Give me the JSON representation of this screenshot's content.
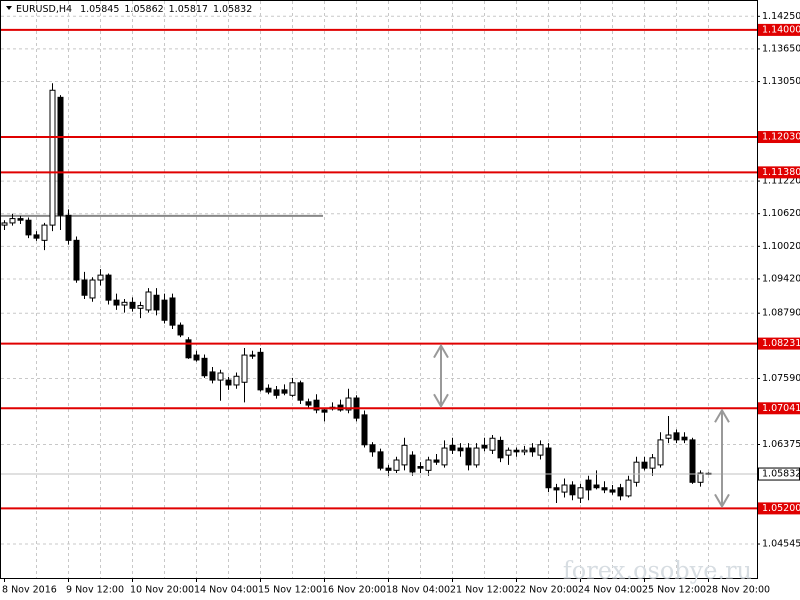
{
  "chart_data": {
    "type": "candlestick",
    "symbol": "EURUSD,H4",
    "watermark": "forex.osobye.ru",
    "categories": [
      "8 Nov 2016",
      null,
      null,
      null,
      null,
      null,
      null,
      null,
      "9 Nov 12:00",
      null,
      null,
      null,
      null,
      null,
      null,
      null,
      "10 Nov 20:00",
      null,
      null,
      null,
      null,
      null,
      null,
      null,
      "14 Nov 04:00",
      null,
      null,
      null,
      null,
      null,
      null,
      null,
      "15 Nov 12:00",
      null,
      null,
      null,
      null,
      null,
      null,
      null,
      "16 Nov 20:00",
      null,
      null,
      null,
      null,
      null,
      null,
      null,
      "18 Nov 04:00",
      null,
      null,
      null,
      null,
      null,
      null,
      null,
      "21 Nov 12:00",
      null,
      null,
      null,
      null,
      null,
      null,
      null,
      "22 Nov 20:00",
      null,
      null,
      null,
      null,
      null,
      null,
      null,
      "24 Nov 04:00",
      null,
      null,
      null,
      null,
      null,
      null,
      null,
      "25 Nov 12:00",
      null,
      null,
      null,
      null,
      null,
      null,
      null,
      "28 Nov 20:00"
    ],
    "ohlc": [
      [
        1.1041,
        1.105,
        1.1032,
        1.1045
      ],
      [
        1.1045,
        1.1062,
        1.104,
        1.1053
      ],
      [
        1.1053,
        1.1058,
        1.1043,
        1.105
      ],
      [
        1.105,
        1.1055,
        1.1017,
        1.1023
      ],
      [
        1.1023,
        1.103,
        1.1012,
        1.1017
      ],
      [
        1.1013,
        1.1045,
        1.0995,
        1.1041
      ],
      [
        1.1041,
        1.1302,
        1.103,
        1.1289
      ],
      [
        1.1276,
        1.128,
        1.1032,
        1.1059
      ],
      [
        1.1059,
        1.107,
        1.1005,
        1.1013
      ],
      [
        1.1013,
        1.102,
        1.0935,
        1.094
      ],
      [
        1.094,
        1.0955,
        1.0905,
        1.0912
      ],
      [
        1.0907,
        1.0945,
        1.09,
        1.094
      ],
      [
        1.094,
        1.096,
        1.093,
        1.0949
      ],
      [
        1.0949,
        1.0952,
        1.0895,
        1.0903
      ],
      [
        1.0903,
        1.0915,
        1.0885,
        1.0894
      ],
      [
        1.0894,
        1.0905,
        1.088,
        1.0899
      ],
      [
        1.0899,
        1.0908,
        1.0882,
        1.0888
      ],
      [
        1.0888,
        1.09,
        1.087,
        1.0893
      ],
      [
        1.0885,
        1.0925,
        1.088,
        1.0918
      ],
      [
        1.0912,
        1.0925,
        1.0875,
        1.0885
      ],
      [
        1.0903,
        1.0915,
        1.086,
        1.0866
      ],
      [
        1.0907,
        1.0915,
        1.085,
        1.0857
      ],
      [
        1.0857,
        1.0862,
        1.0835,
        1.0839
      ],
      [
        1.083,
        1.0835,
        1.0795,
        1.0797
      ],
      [
        1.0802,
        1.081,
        1.079,
        1.0793
      ],
      [
        1.0796,
        1.0803,
        1.076,
        1.0764
      ],
      [
        1.0771,
        1.078,
        1.075,
        1.0756
      ],
      [
        1.0756,
        1.0775,
        1.0718,
        1.0769
      ],
      [
        1.0756,
        1.0762,
        1.0738,
        1.0747
      ],
      [
        1.0747,
        1.077,
        1.074,
        1.0763
      ],
      [
        1.0752,
        1.0815,
        1.0715,
        1.0802
      ],
      [
        1.0802,
        1.081,
        1.0795,
        1.08
      ],
      [
        1.0807,
        1.0815,
        1.0735,
        1.0738
      ],
      [
        1.0741,
        1.0748,
        1.073,
        1.0734
      ],
      [
        1.0738,
        1.0745,
        1.0722,
        1.0728
      ],
      [
        1.0738,
        1.0748,
        1.0728,
        1.0732
      ],
      [
        1.0728,
        1.076,
        1.0725,
        1.0751
      ],
      [
        1.0751,
        1.0755,
        1.0712,
        1.0719
      ],
      [
        1.0716,
        1.0722,
        1.0705,
        1.071
      ],
      [
        1.0719,
        1.073,
        1.0695,
        1.0701
      ],
      [
        1.0701,
        1.0705,
        1.068,
        1.0697
      ],
      [
        1.0706,
        1.0715,
        1.07,
        1.0703
      ],
      [
        1.071,
        1.072,
        1.0698,
        1.0701
      ],
      [
        1.0701,
        1.074,
        1.0695,
        1.0723
      ],
      [
        1.0723,
        1.0728,
        1.068,
        1.0686
      ],
      [
        1.0692,
        1.07,
        1.0632,
        1.0637
      ],
      [
        1.0637,
        1.0642,
        1.0615,
        1.0624
      ],
      [
        1.0624,
        1.063,
        1.059,
        1.0594
      ],
      [
        1.0594,
        1.06,
        1.058,
        1.059
      ],
      [
        1.059,
        1.0615,
        1.0585,
        1.0609
      ],
      [
        1.06,
        1.065,
        1.059,
        1.0636
      ],
      [
        1.0618,
        1.0625,
        1.058,
        1.0587
      ],
      [
        1.0597,
        1.0605,
        1.0585,
        1.0594
      ],
      [
        1.059,
        1.0615,
        1.058,
        1.0609
      ],
      [
        1.0609,
        1.062,
        1.06,
        1.0605
      ],
      [
        1.06,
        1.0645,
        1.0595,
        1.0631
      ],
      [
        1.0636,
        1.065,
        1.062,
        1.0627
      ],
      [
        1.0631,
        1.064,
        1.0615,
        1.0626
      ],
      [
        1.0631,
        1.064,
        1.059,
        1.06
      ],
      [
        1.06,
        1.064,
        1.0595,
        1.0631
      ],
      [
        1.0636,
        1.065,
        1.0625,
        1.0631
      ],
      [
        1.0627,
        1.0655,
        1.062,
        1.0649
      ],
      [
        1.0645,
        1.0652,
        1.0605,
        1.0613
      ],
      [
        1.0618,
        1.0632,
        1.06,
        1.0627
      ],
      [
        1.0627,
        1.0632,
        1.0615,
        1.0624
      ],
      [
        1.0624,
        1.0635,
        1.0618,
        1.0627
      ],
      [
        1.0631,
        1.064,
        1.0615,
        1.0624
      ],
      [
        1.0618,
        1.0645,
        1.061,
        1.0637
      ],
      [
        1.0631,
        1.064,
        1.055,
        1.0558
      ],
      [
        1.0558,
        1.0565,
        1.053,
        1.0554
      ],
      [
        1.055,
        1.0575,
        1.054,
        1.0563
      ],
      [
        1.0563,
        1.057,
        1.0535,
        1.0545
      ],
      [
        1.0539,
        1.0565,
        1.053,
        1.0558
      ],
      [
        1.0572,
        1.058,
        1.0535,
        1.0554
      ],
      [
        1.0563,
        1.059,
        1.0555,
        1.0558
      ],
      [
        1.0558,
        1.057,
        1.0548,
        1.0554
      ],
      [
        1.0554,
        1.0563,
        1.0545,
        1.055
      ],
      [
        1.0558,
        1.0565,
        1.0535,
        1.0543
      ],
      [
        1.0543,
        1.058,
        1.054,
        1.0572
      ],
      [
        1.0568,
        1.0615,
        1.056,
        1.0605
      ],
      [
        1.0605,
        1.0615,
        1.059,
        1.0594
      ],
      [
        1.0594,
        1.062,
        1.058,
        1.0613
      ],
      [
        1.06,
        1.066,
        1.0595,
        1.0646
      ],
      [
        1.0649,
        1.069,
        1.064,
        1.0655
      ],
      [
        1.0659,
        1.0665,
        1.064,
        1.0646
      ],
      [
        1.0651,
        1.066,
        1.064,
        1.0646
      ],
      [
        1.0646,
        1.065,
        1.0565,
        1.0568
      ],
      [
        1.0568,
        1.059,
        1.056,
        1.0585
      ],
      [
        1.05845,
        1.05862,
        1.05817,
        1.05832
      ]
    ],
    "bull_color": "#ffffff",
    "bear_color": "#000000",
    "ylim": [
      1.0392,
      1.1455
    ],
    "yticks": [
      {
        "value": 1.1425,
        "label": "1.14250"
      },
      {
        "value": 1.1365,
        "label": "1.13650"
      },
      {
        "value": 1.1305,
        "label": "1.13050"
      },
      {
        "value": 1.1122,
        "label": "1.11220"
      },
      {
        "value": 1.1062,
        "label": "1.10620"
      },
      {
        "value": 1.1002,
        "label": "1.10020"
      },
      {
        "value": 1.0942,
        "label": "1.09420"
      },
      {
        "value": 1.0879,
        "label": "1.08790"
      },
      {
        "value": 1.0759,
        "label": "1.07590"
      },
      {
        "value": 1.06375,
        "label": "1.06375"
      },
      {
        "value": 1.04545,
        "label": "1.04545"
      }
    ],
    "grid": true,
    "levels": [
      {
        "value": 1.14,
        "label": "1.14000"
      },
      {
        "value": 1.1203,
        "label": "1.12030"
      },
      {
        "value": 1.1138,
        "label": "1.11380"
      },
      {
        "value": 1.08231,
        "label": "1.08231"
      },
      {
        "value": 1.07041,
        "label": "1.07041"
      },
      {
        "value": 1.052,
        "label": "1.05200"
      }
    ],
    "level_color": "#e00000",
    "reference_line": 1.1058
  }
}
